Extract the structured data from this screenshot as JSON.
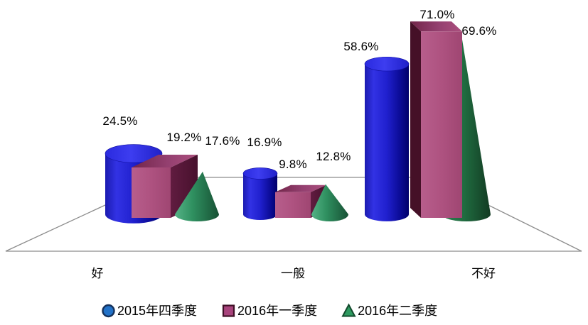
{
  "chart_data": {
    "type": "bar",
    "subtype": "3d-shapes",
    "title": "",
    "categories": [
      "好",
      "一般",
      "不好"
    ],
    "series": [
      {
        "name": "2015年四季度",
        "shape": "cylinder",
        "color": "#2222CC",
        "values": [
          24.5,
          16.9,
          58.6
        ]
      },
      {
        "name": "2016年一季度",
        "shape": "box",
        "color": "#A84E7E",
        "values": [
          19.2,
          9.8,
          71.0
        ]
      },
      {
        "name": "2016年二季度",
        "shape": "cone",
        "color": "#2E8B57",
        "values": [
          17.6,
          12.8,
          69.6
        ]
      }
    ],
    "value_labels": [
      [
        "24.5%",
        "16.9%",
        "58.6%"
      ],
      [
        "19.2%",
        "9.8%",
        "71.0%"
      ],
      [
        "17.6%",
        "12.8%",
        "69.6%"
      ]
    ],
    "xlabel": "",
    "ylabel": "",
    "ylim": [
      0,
      80
    ],
    "grid": false,
    "legend_position": "bottom",
    "floor_color": "#8C8C8C"
  },
  "legend": {
    "items": [
      {
        "label": "2015年四季度",
        "marker": "circle",
        "color": "#2272C8"
      },
      {
        "label": "2016年一季度",
        "marker": "square",
        "color": "#A8437C"
      },
      {
        "label": "2016年二季度",
        "marker": "triangle",
        "color": "#2E9A60"
      }
    ]
  }
}
